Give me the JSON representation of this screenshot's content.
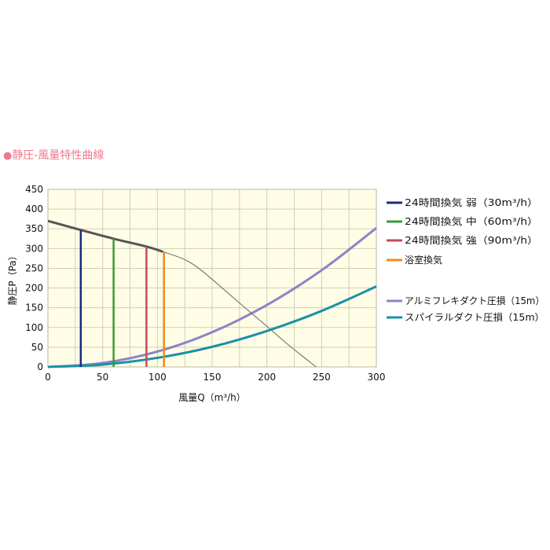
{
  "heading": {
    "bullet": "●",
    "text": "静圧-風量特性曲線"
  },
  "colors": {
    "plot_bg": "#fffde6",
    "grid": "#cfcfb8",
    "weak": "#1a2a80",
    "medium": "#3a9a3a",
    "strong": "#c84a58",
    "bath": "#f08a20",
    "aluminum": "#8a84c8",
    "spiral": "#1a90a8",
    "fan_curve": "#666666",
    "fan_curve_bold": "#555555"
  },
  "chart_data": {
    "type": "line",
    "xlabel": "風量Q（m³/h）",
    "ylabel": "静圧P（Pa）",
    "xlim": [
      0,
      300
    ],
    "ylim": [
      0,
      450
    ],
    "xticks": [
      0,
      50,
      100,
      150,
      200,
      250,
      300
    ],
    "yticks": [
      0,
      50,
      100,
      150,
      200,
      250,
      300,
      350,
      400,
      450
    ],
    "grid": true,
    "legend_position": "right",
    "fan_curve": {
      "x": [
        0,
        30,
        60,
        90,
        105,
        125,
        140,
        160,
        180,
        200,
        220,
        245
      ],
      "y": [
        370,
        347,
        325,
        305,
        292,
        272,
        245,
        198,
        150,
        103,
        55,
        0
      ]
    },
    "operating_lines": [
      {
        "label": "24時間換気 弱（30m³/h）",
        "x": 30,
        "y_top": 347,
        "color": "#1a2a80"
      },
      {
        "label": "24時間換気 中（60m³/h）",
        "x": 60,
        "y_top": 325,
        "color": "#3a9a3a"
      },
      {
        "label": "24時間換気 強（90m³/h）",
        "x": 90,
        "y_top": 305,
        "color": "#c84a58"
      },
      {
        "label": "浴室換気",
        "x": 106,
        "y_top": 290,
        "color": "#f08a20"
      }
    ],
    "series": [
      {
        "name": "アルミフレキダクト圧損（15m）",
        "color": "#8a84c8",
        "x": [
          0,
          50,
          100,
          150,
          200,
          250,
          300
        ],
        "y": [
          0,
          10,
          39,
          88,
          157,
          245,
          352
        ]
      },
      {
        "name": "スパイラルダクト圧損（15m）",
        "color": "#1a90a8",
        "x": [
          0,
          50,
          100,
          150,
          200,
          250,
          300
        ],
        "y": [
          0,
          6,
          23,
          51,
          91,
          142,
          204
        ]
      }
    ]
  }
}
